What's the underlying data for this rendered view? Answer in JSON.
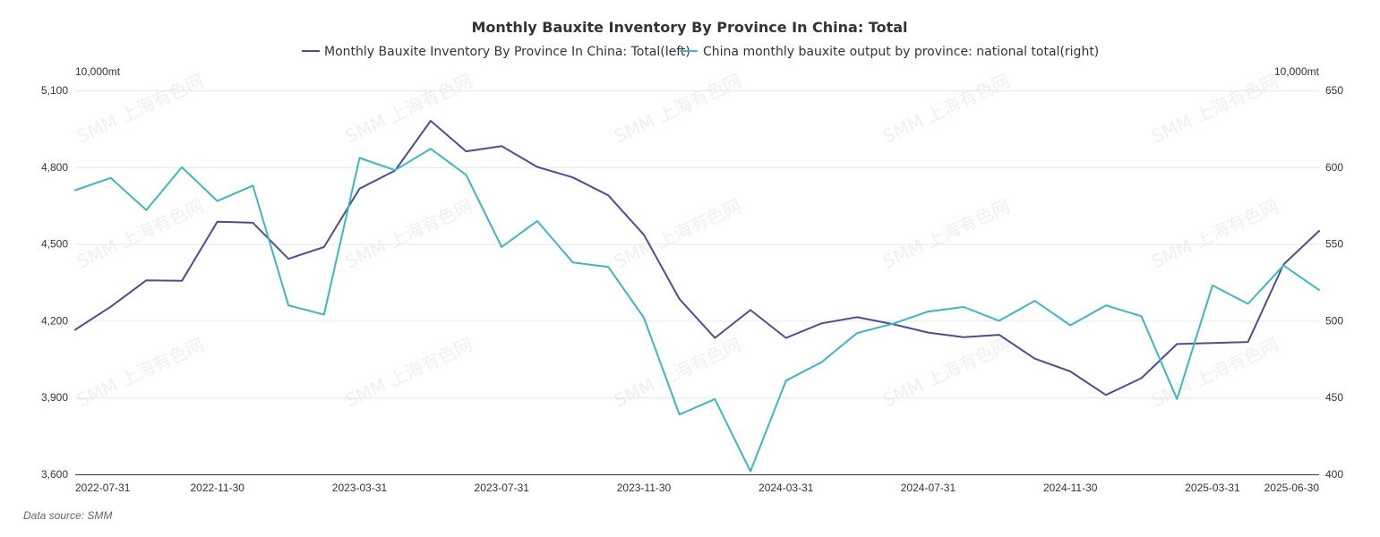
{
  "chart_data": {
    "type": "line",
    "title": "Monthly Bauxite Inventory By Province In China: Total",
    "left_unit": "10,000mt",
    "right_unit": "10,000mt",
    "left_ylim": [
      3600,
      5100
    ],
    "left_ticks": [
      "3,600",
      "3,900",
      "4,200",
      "4,500",
      "4,800",
      "5,100"
    ],
    "right_ylim": [
      400,
      650
    ],
    "right_ticks": [
      "400",
      "450",
      "500",
      "550",
      "600",
      "650"
    ],
    "x": [
      "2022-07-31",
      "2022-08-31",
      "2022-09-30",
      "2022-10-31",
      "2022-11-30",
      "2022-12-31",
      "2023-01-31",
      "2023-02-28",
      "2023-03-31",
      "2023-04-30",
      "2023-05-31",
      "2023-06-30",
      "2023-07-31",
      "2023-08-31",
      "2023-09-30",
      "2023-10-31",
      "2023-11-30",
      "2023-12-31",
      "2024-01-31",
      "2024-02-29",
      "2024-03-31",
      "2024-04-30",
      "2024-05-31",
      "2024-06-30",
      "2024-07-31",
      "2024-08-31",
      "2024-09-30",
      "2024-10-31",
      "2024-11-30",
      "2024-12-31",
      "2025-01-31",
      "2025-02-28",
      "2025-03-31",
      "2025-04-30",
      "2025-05-31",
      "2025-06-30"
    ],
    "x_tick_labels": [
      "2022-07-31",
      "2022-11-30",
      "2023-03-31",
      "2023-07-31",
      "2023-11-30",
      "2024-03-31",
      "2024-07-31",
      "2024-11-30",
      "2025-03-31",
      "2025-06-30"
    ],
    "grid": true,
    "legend_position": "top-center",
    "series": [
      {
        "name": "Monthly Bauxite Inventory By Province In China: Total(left)",
        "axis": "left",
        "color": "#4a5190",
        "values": [
          4165,
          4255,
          4358,
          4356,
          4587,
          4583,
          4442,
          4488,
          4716,
          4787,
          4981,
          4862,
          4882,
          4801,
          4760,
          4690,
          4536,
          4285,
          4133,
          4242,
          4133,
          4190,
          4214,
          4187,
          4154,
          4136,
          4145,
          4052,
          4002,
          3910,
          3976,
          4109,
          4113,
          4117,
          4420,
          4551
        ]
      },
      {
        "name": "China monthly bauxite output by province: national total(right)",
        "axis": "right",
        "color": "#3eb6c6",
        "values": [
          585,
          593,
          572,
          600,
          578,
          588,
          510,
          504,
          606,
          598,
          612,
          595,
          548,
          565,
          538,
          535,
          502,
          439,
          449,
          402,
          461,
          473,
          492,
          498,
          506,
          509,
          500,
          513,
          497,
          510,
          503,
          449,
          523,
          511,
          536,
          520
        ]
      }
    ]
  },
  "source_text": "Data source:  SMM",
  "watermark_text": "SMM 上海有色网"
}
